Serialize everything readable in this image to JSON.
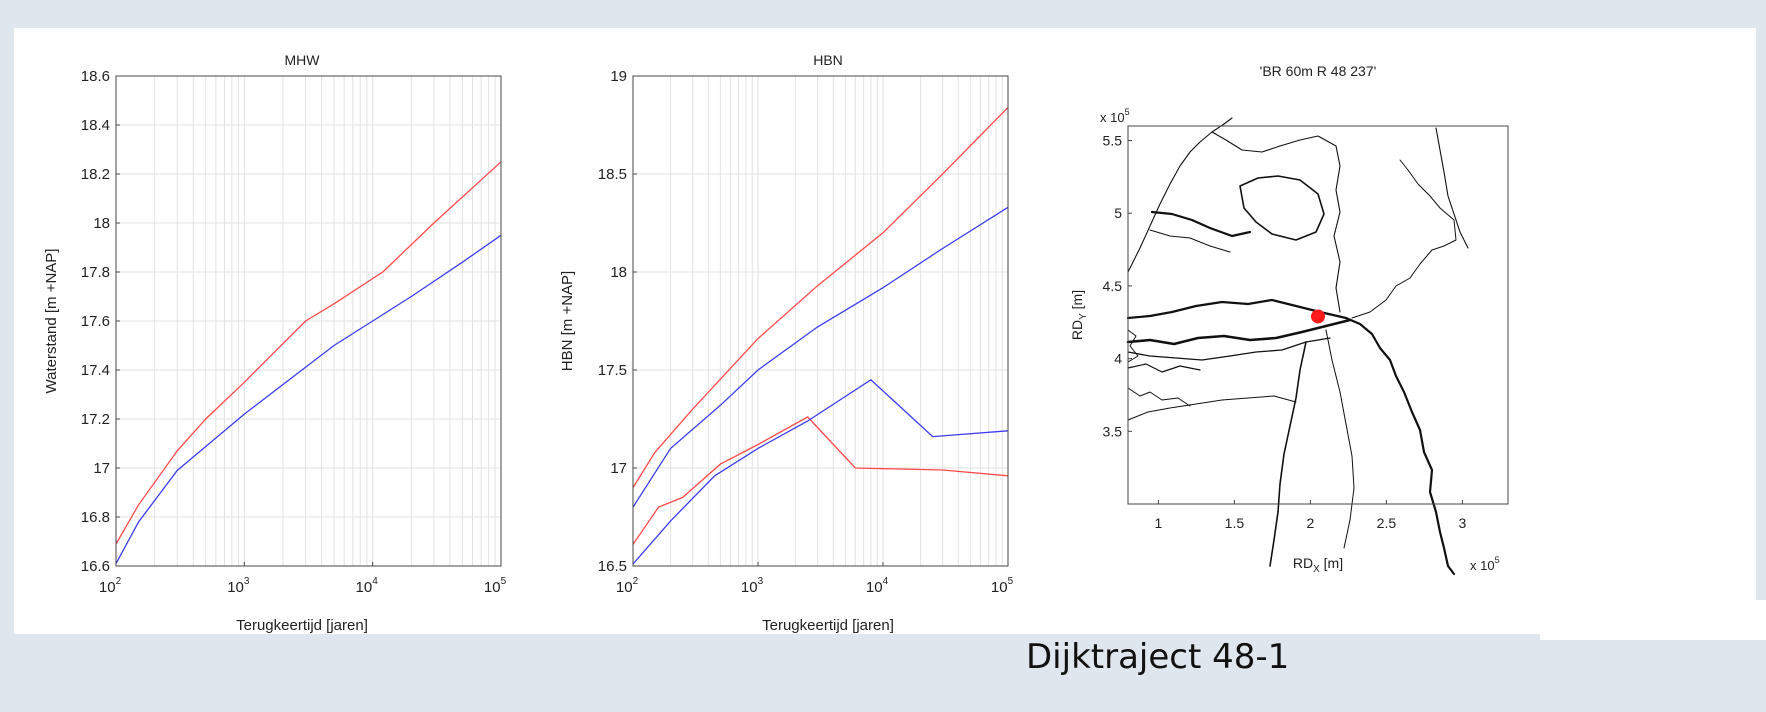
{
  "caption": "Dijktraject 48-1",
  "colors": {
    "red": "#ff4a4a",
    "blue": "#3d3df2",
    "grid": "#e2e2e2",
    "map": "#111111",
    "marker": "#ff1a1a"
  },
  "chart_data": [
    {
      "type": "line",
      "title": "MHW",
      "xlabel": "Terugkeertijd [jaren]",
      "ylabel": "Waterstand [m +NAP]",
      "xscale": "log",
      "xlim": [
        100,
        100000
      ],
      "ylim": [
        16.6,
        18.6
      ],
      "yticks": [
        "16.6",
        "16.8",
        "17",
        "17.2",
        "17.4",
        "17.6",
        "17.8",
        "18",
        "18.2",
        "18.4",
        "18.6"
      ],
      "xticks": [
        {
          "base": "10",
          "exp": "2"
        },
        {
          "base": "10",
          "exp": "3"
        },
        {
          "base": "10",
          "exp": "4"
        },
        {
          "base": "10",
          "exp": "5"
        }
      ],
      "grid": true,
      "series": [
        {
          "color": "red",
          "points": [
            [
              100,
              16.69
            ],
            [
              150,
              16.85
            ],
            [
              300,
              17.07
            ],
            [
              500,
              17.2
            ],
            [
              1000,
              17.35
            ],
            [
              3000,
              17.6
            ],
            [
              5000,
              17.67
            ],
            [
              12000,
              17.8
            ],
            [
              30000,
              18.0
            ],
            [
              100000,
              18.25
            ]
          ]
        },
        {
          "color": "blue",
          "points": [
            [
              100,
              16.61
            ],
            [
              150,
              16.78
            ],
            [
              300,
              16.99
            ],
            [
              1000,
              17.22
            ],
            [
              5000,
              17.5
            ],
            [
              10000,
              17.6
            ],
            [
              20000,
              17.7
            ],
            [
              50000,
              17.84
            ],
            [
              100000,
              17.95
            ]
          ]
        }
      ]
    },
    {
      "type": "line",
      "title": "HBN",
      "xlabel": "Terugkeertijd [jaren]",
      "ylabel": "HBN [m +NAP]",
      "xscale": "log",
      "xlim": [
        100,
        100000
      ],
      "ylim": [
        16.5,
        19
      ],
      "yticks": [
        "16.5",
        "17",
        "17.5",
        "18",
        "18.5",
        "19"
      ],
      "xticks": [
        {
          "base": "10",
          "exp": "2"
        },
        {
          "base": "10",
          "exp": "3"
        },
        {
          "base": "10",
          "exp": "4"
        },
        {
          "base": "10",
          "exp": "5"
        }
      ],
      "grid": true,
      "series": [
        {
          "color": "red",
          "points": [
            [
              100,
              16.9
            ],
            [
              150,
              17.08
            ],
            [
              300,
              17.3
            ],
            [
              1000,
              17.66
            ],
            [
              3000,
              17.93
            ],
            [
              10000,
              18.2
            ],
            [
              30000,
              18.5
            ],
            [
              100000,
              18.84
            ]
          ]
        },
        {
          "color": "blue",
          "points": [
            [
              100,
              16.8
            ],
            [
              200,
              17.1
            ],
            [
              500,
              17.32
            ],
            [
              1000,
              17.5
            ],
            [
              3000,
              17.72
            ],
            [
              10000,
              17.92
            ],
            [
              30000,
              18.12
            ],
            [
              100000,
              18.33
            ]
          ]
        },
        {
          "color": "red",
          "points": [
            [
              100,
              16.61
            ],
            [
              160,
              16.8
            ],
            [
              250,
              16.85
            ],
            [
              500,
              17.02
            ],
            [
              1000,
              17.12
            ],
            [
              2500,
              17.26
            ],
            [
              6000,
              17.0
            ],
            [
              30000,
              16.99
            ],
            [
              100000,
              16.96
            ]
          ]
        },
        {
          "color": "blue",
          "points": [
            [
              100,
              16.51
            ],
            [
              200,
              16.73
            ],
            [
              450,
              16.96
            ],
            [
              1000,
              17.1
            ],
            [
              2500,
              17.24
            ],
            [
              8000,
              17.45
            ],
            [
              25000,
              17.16
            ],
            [
              100000,
              17.19
            ]
          ]
        }
      ]
    },
    {
      "type": "map",
      "title": "'BR 60m R 48 237'",
      "xlabel": "RD",
      "xlabel_sub": "X",
      "xlabel_unit": " [m]",
      "ylabel": "RD",
      "ylabel_sub": "Y",
      "ylabel_unit": " [m]",
      "xlim": [
        80000,
        330000
      ],
      "ylim": [
        300000,
        560000
      ],
      "xticks": [
        "1",
        "1.5",
        "2",
        "2.5",
        "3"
      ],
      "yticks": [
        "3.5",
        "4",
        "4.5",
        "5",
        "5.5"
      ],
      "exp_label_top": "x 10",
      "exp_label_right": "x 10",
      "exp_power": "5",
      "marker": [
        205000,
        429000
      ]
    }
  ]
}
